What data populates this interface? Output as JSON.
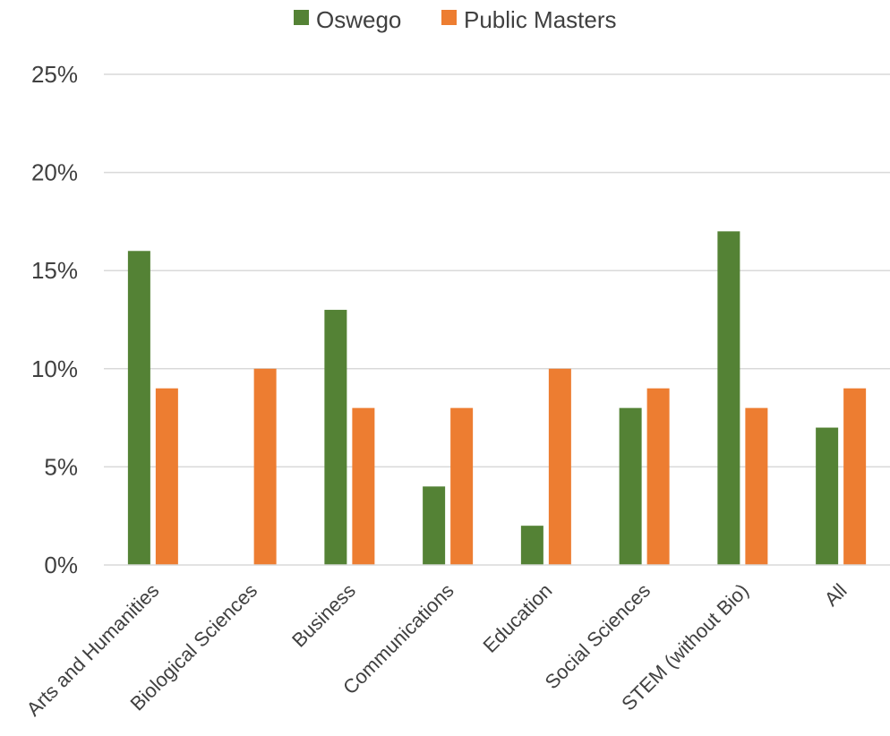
{
  "chart_data": {
    "type": "bar",
    "categories": [
      "Arts and Humanities",
      "Biological Sciences",
      "Business",
      "Communications",
      "Education",
      "Social Sciences",
      "STEM (without Bio)",
      "All"
    ],
    "series": [
      {
        "name": "Oswego",
        "color": "#548235",
        "values": [
          16,
          0,
          13,
          4,
          2,
          8,
          17,
          7
        ]
      },
      {
        "name": "Public Masters",
        "color": "#ED7D31",
        "values": [
          9,
          10,
          8,
          8,
          10,
          9,
          8,
          9
        ]
      }
    ],
    "ylim": [
      0,
      25
    ],
    "yticks": [
      "0%",
      "5%",
      "10%",
      "15%",
      "20%",
      "25%"
    ],
    "grid": true,
    "legend_position": "top-center",
    "xlabel": "",
    "ylabel": ""
  }
}
